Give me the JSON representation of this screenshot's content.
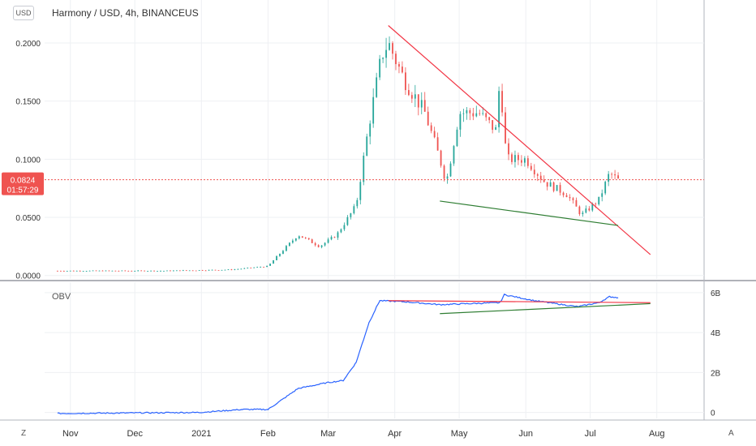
{
  "window": {
    "title": "Harmony / USD, 4h, BINANCEUS",
    "currency_button": "USD",
    "corner_left": "Z",
    "corner_right": "A"
  },
  "colors": {
    "up": "#26a69a",
    "down": "#ef5350",
    "price_line": "#ef5350",
    "obv_line": "#2962ff",
    "resistance": "#f23645",
    "support": "#2e7d32",
    "grid": "#eef0f3",
    "axis_text": "#333333"
  },
  "chart_data": [
    {
      "type": "candlestick",
      "title": "Harmony / USD, 4h, BINANCEUS",
      "ylim": [
        -0.003,
        0.23
      ],
      "y_ticks": [
        0.0,
        0.05,
        0.1,
        0.15,
        0.2
      ],
      "y_tick_labels": [
        "0.0000",
        "0.0500",
        "0.1000",
        "0.1500",
        "0.2000"
      ],
      "x_tick_labels": [
        "Nov",
        "Dec",
        "2021",
        "Feb",
        "Mar",
        "Apr",
        "May",
        "Jun",
        "Jul",
        "Aug"
      ],
      "last_price": 0.0824,
      "last_price_label": "0.0824",
      "countdown_label": "01:57:29",
      "close_approx": [
        [
          "2020-10-26",
          0.004
        ],
        [
          "2020-11-15",
          0.004
        ],
        [
          "2020-12-15",
          0.004
        ],
        [
          "2021-01-15",
          0.005
        ],
        [
          "2021-02-01",
          0.008
        ],
        [
          "2021-02-05",
          0.016
        ],
        [
          "2021-02-15",
          0.035
        ],
        [
          "2021-02-25",
          0.025
        ],
        [
          "2021-03-05",
          0.035
        ],
        [
          "2021-03-14",
          0.06
        ],
        [
          "2021-03-20",
          0.13
        ],
        [
          "2021-03-26",
          0.19
        ],
        [
          "2021-03-29",
          0.2
        ],
        [
          "2021-04-05",
          0.17
        ],
        [
          "2021-04-15",
          0.14
        ],
        [
          "2021-04-22",
          0.1
        ],
        [
          "2021-04-25",
          0.08
        ],
        [
          "2021-05-01",
          0.14
        ],
        [
          "2021-05-10",
          0.14
        ],
        [
          "2021-05-18",
          0.125
        ],
        [
          "2021-05-20",
          0.17
        ],
        [
          "2021-05-23",
          0.1
        ],
        [
          "2021-06-01",
          0.1
        ],
        [
          "2021-06-10",
          0.08
        ],
        [
          "2021-06-20",
          0.07
        ],
        [
          "2021-06-27",
          0.052
        ],
        [
          "2021-07-05",
          0.065
        ],
        [
          "2021-07-10",
          0.088
        ],
        [
          "2021-07-14",
          0.082
        ]
      ],
      "annotations": [
        {
          "kind": "resistance",
          "from": [
            "2021-03-29",
            0.215
          ],
          "to": [
            "2021-07-29",
            0.018
          ]
        },
        {
          "kind": "support",
          "from": [
            "2021-04-22",
            0.064
          ],
          "to": [
            "2021-07-14",
            0.043
          ]
        }
      ]
    },
    {
      "type": "line",
      "title": "OBV",
      "ylim": [
        -0.3,
        6.2
      ],
      "y_ticks": [
        0,
        2,
        4,
        6
      ],
      "y_tick_labels": [
        "0",
        "2B",
        "4B",
        "6B"
      ],
      "series": [
        {
          "name": "OBV",
          "points": [
            [
              "2020-10-26",
              -0.05
            ],
            [
              "2020-12-31",
              0.0
            ],
            [
              "2021-01-20",
              0.15
            ],
            [
              "2021-02-01",
              0.15
            ],
            [
              "2021-02-07",
              0.6
            ],
            [
              "2021-02-15",
              1.2
            ],
            [
              "2021-03-01",
              1.5
            ],
            [
              "2021-03-08",
              1.6
            ],
            [
              "2021-03-14",
              2.5
            ],
            [
              "2021-03-20",
              4.5
            ],
            [
              "2021-03-25",
              5.6
            ],
            [
              "2021-04-05",
              5.55
            ],
            [
              "2021-04-22",
              5.4
            ],
            [
              "2021-05-05",
              5.45
            ],
            [
              "2021-05-20",
              5.5
            ],
            [
              "2021-05-22",
              5.9
            ],
            [
              "2021-06-05",
              5.6
            ],
            [
              "2021-06-25",
              5.3
            ],
            [
              "2021-07-05",
              5.5
            ],
            [
              "2021-07-10",
              5.8
            ],
            [
              "2021-07-14",
              5.75
            ]
          ]
        }
      ],
      "annotations": [
        {
          "kind": "resistance",
          "from": [
            "2021-03-29",
            5.6
          ],
          "to": [
            "2021-07-29",
            5.5
          ]
        },
        {
          "kind": "support",
          "from": [
            "2021-04-22",
            4.95
          ],
          "to": [
            "2021-07-29",
            5.45
          ]
        }
      ]
    }
  ]
}
